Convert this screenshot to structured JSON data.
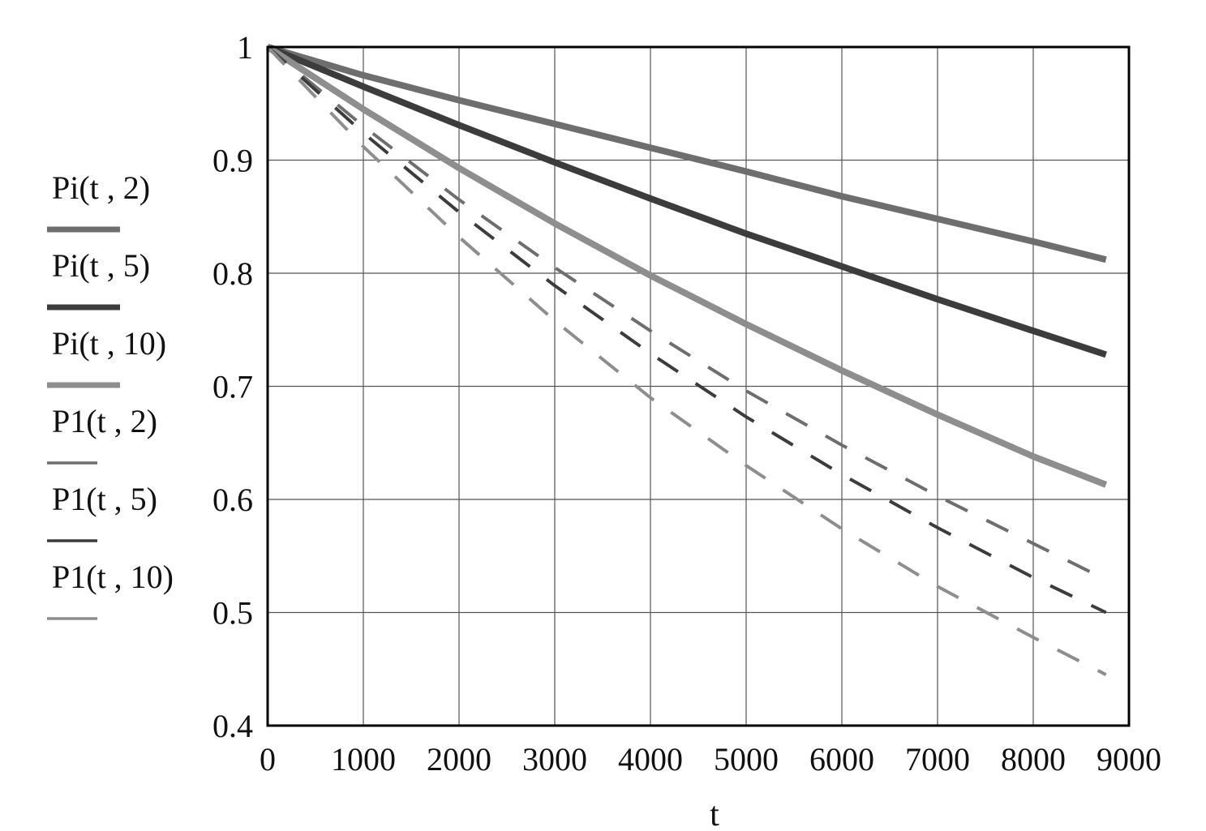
{
  "chart_data": {
    "type": "line",
    "xlabel": "t",
    "ylabel": "",
    "xlim": [
      0,
      9000
    ],
    "ylim": [
      0.4,
      1
    ],
    "grid": true,
    "legend_position": "left",
    "x_ticks": [
      "0",
      "1000",
      "2000",
      "3000",
      "4000",
      "5000",
      "6000",
      "7000",
      "8000",
      "9000"
    ],
    "y_ticks": [
      "0.4",
      "0.5",
      "0.6",
      "0.7",
      "0.8",
      "0.9",
      "1"
    ],
    "x": [
      0,
      1000,
      2000,
      3000,
      4000,
      5000,
      6000,
      7000,
      8000,
      8760
    ],
    "series": [
      {
        "name": "Pi(t , 2)",
        "style": "solid",
        "color": "#6e6e6e",
        "values": [
          1,
          0.975,
          0.953,
          0.932,
          0.911,
          0.89,
          0.868,
          0.848,
          0.828,
          0.812
        ]
      },
      {
        "name": "Pi(t , 5)",
        "style": "solid",
        "color": "#3c3c3c",
        "values": [
          1,
          0.965,
          0.931,
          0.898,
          0.866,
          0.835,
          0.806,
          0.777,
          0.749,
          0.728
        ]
      },
      {
        "name": "Pi(t , 10)",
        "style": "solid",
        "color": "#8e8e8e",
        "values": [
          1,
          0.945,
          0.893,
          0.844,
          0.798,
          0.755,
          0.714,
          0.675,
          0.638,
          0.613
        ]
      },
      {
        "name": "P1(t , 2)",
        "style": "dashed",
        "color": "#6e6e6e",
        "values": [
          1,
          0.93,
          0.865,
          0.805,
          0.749,
          0.696,
          0.648,
          0.603,
          0.561,
          0.529
        ]
      },
      {
        "name": "P1(t , 5)",
        "style": "dashed",
        "color": "#3c3c3c",
        "values": [
          1,
          0.924,
          0.854,
          0.789,
          0.729,
          0.673,
          0.622,
          0.575,
          0.531,
          0.5
        ]
      },
      {
        "name": "P1(t , 10)",
        "style": "dashed",
        "color": "#8e8e8e",
        "values": [
          1,
          0.912,
          0.832,
          0.758,
          0.69,
          0.63,
          0.574,
          0.523,
          0.478,
          0.445
        ]
      }
    ]
  }
}
